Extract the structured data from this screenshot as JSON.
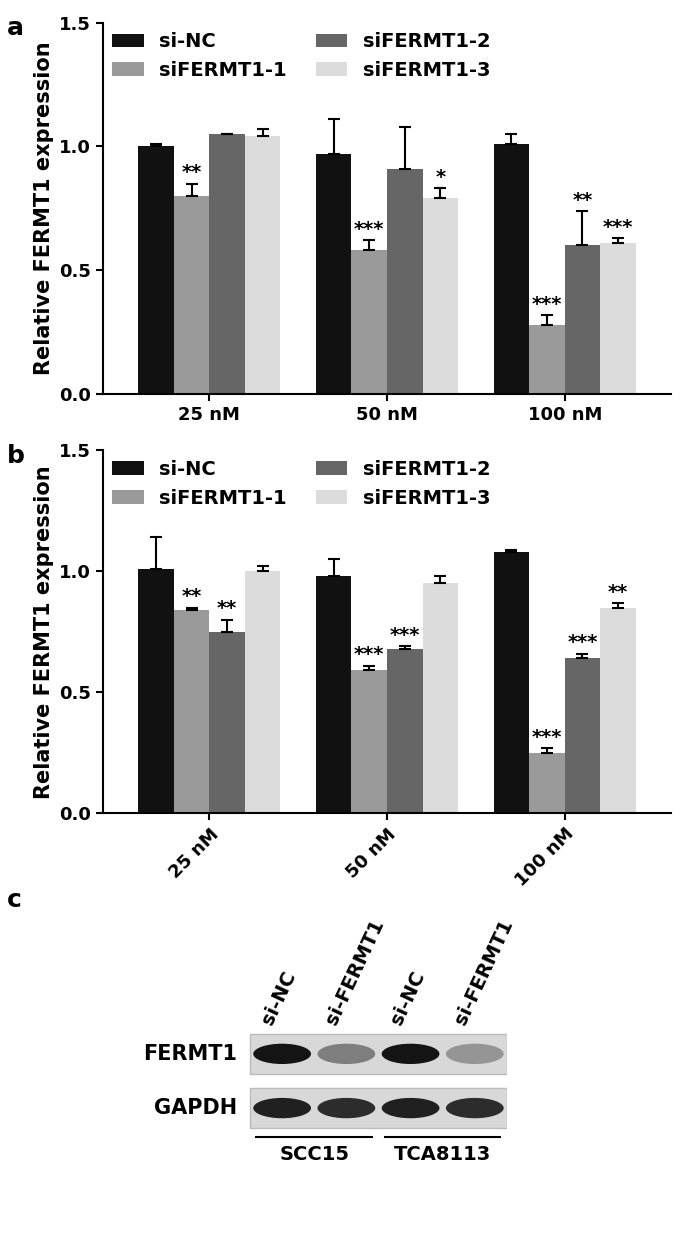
{
  "chart_data": [
    {
      "type": "bar",
      "panel": "a",
      "categories": [
        "25 nM",
        "50 nM",
        "100 nM"
      ],
      "y_label": "Relative FERMT1 expression",
      "ylim": [
        0,
        1.5
      ],
      "yticks": [
        {
          "value": 0,
          "label": "0.0"
        },
        {
          "value": 0.5,
          "label": "0.5"
        },
        {
          "value": 1.0,
          "label": "1.0"
        },
        {
          "value": 1.5,
          "label": "1.5"
        }
      ],
      "legend": "upper left",
      "series": [
        {
          "name": "si-NC",
          "color": "#111111",
          "values": [
            1.0,
            0.97,
            1.01
          ],
          "errors": [
            0.01,
            0.14,
            0.04
          ],
          "annotations": [
            null,
            null,
            null
          ]
        },
        {
          "name": "siFERMT1-1",
          "color": "#9a9a9a",
          "values": [
            0.8,
            0.58,
            0.28
          ],
          "errors": [
            0.05,
            0.04,
            0.04
          ],
          "annotations": [
            "**",
            "***",
            "***"
          ]
        },
        {
          "name": "siFERMT1-2",
          "color": "#666666",
          "values": [
            1.05,
            0.91,
            0.6
          ],
          "errors": [
            0.0,
            0.17,
            0.14
          ],
          "annotations": [
            null,
            null,
            "**"
          ]
        },
        {
          "name": "siFERMT1-3",
          "color": "#dcdcdc",
          "values": [
            1.04,
            0.79,
            0.61
          ],
          "errors": [
            0.03,
            0.04,
            0.02
          ],
          "annotations": [
            null,
            "*",
            "***"
          ]
        }
      ]
    },
    {
      "type": "bar",
      "panel": "b",
      "categories": [
        "25 nM",
        "50 nM",
        "100 nM"
      ],
      "y_label": "Relative FERMT1 expression",
      "ylim": [
        0,
        1.5
      ],
      "yticks": [
        {
          "value": 0,
          "label": "0.0"
        },
        {
          "value": 0.5,
          "label": "0.5"
        },
        {
          "value": 1.0,
          "label": "1.0"
        },
        {
          "value": 1.5,
          "label": "1.5"
        }
      ],
      "legend": "upper left",
      "series": [
        {
          "name": "si-NC",
          "color": "#111111",
          "values": [
            1.01,
            0.98,
            1.08
          ],
          "errors": [
            0.13,
            0.07,
            0.01
          ],
          "annotations": [
            null,
            null,
            null
          ]
        },
        {
          "name": "siFERMT1-1",
          "color": "#9a9a9a",
          "values": [
            0.84,
            0.59,
            0.25
          ],
          "errors": [
            0.01,
            0.02,
            0.02
          ],
          "annotations": [
            "**",
            "***",
            "***"
          ]
        },
        {
          "name": "siFERMT1-2",
          "color": "#666666",
          "values": [
            0.75,
            0.68,
            0.64
          ],
          "errors": [
            0.05,
            0.01,
            0.02
          ],
          "annotations": [
            "**",
            "***",
            "***"
          ]
        },
        {
          "name": "siFERMT1-3",
          "color": "#dcdcdc",
          "values": [
            1.0,
            0.95,
            0.85
          ],
          "errors": [
            0.02,
            0.03,
            0.02
          ],
          "annotations": [
            null,
            null,
            "**"
          ]
        }
      ]
    }
  ],
  "blot": {
    "panel": "c",
    "groups": [
      {
        "label": "SCC15",
        "lanes": [
          "si-NC",
          "si-FERMT1"
        ]
      },
      {
        "label": "TCA8113",
        "lanes": [
          "si-NC",
          "si-FERMT1"
        ]
      }
    ],
    "rows": [
      {
        "label": "FERMT1",
        "intensity": [
          1.0,
          0.55,
          1.0,
          0.45
        ]
      },
      {
        "label": "GAPDH",
        "intensity": [
          0.95,
          0.9,
          0.95,
          0.9
        ]
      }
    ]
  }
}
